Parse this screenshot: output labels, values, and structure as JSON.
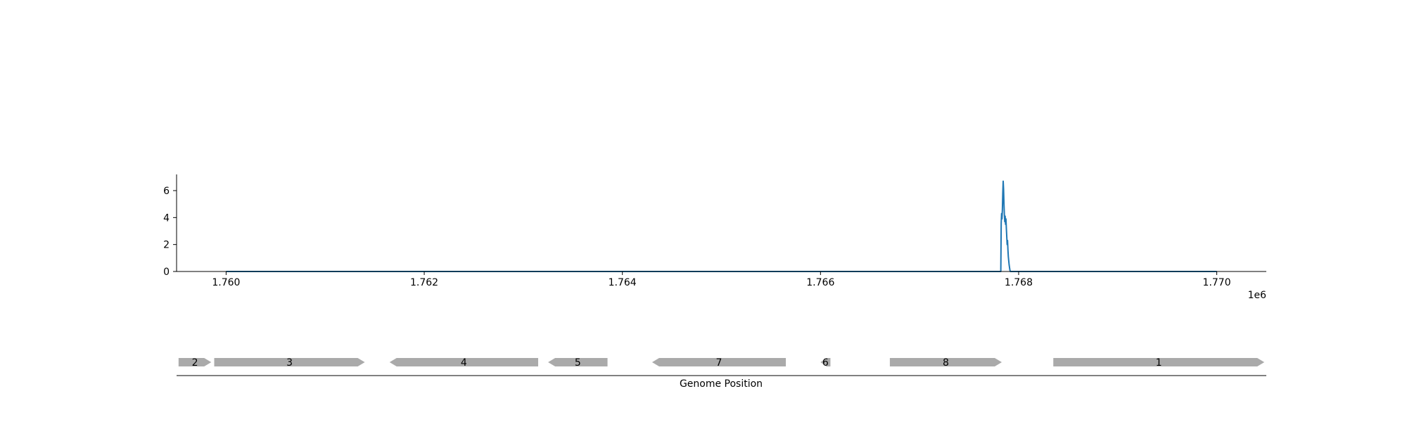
{
  "chart_data": [
    {
      "type": "line",
      "title": "",
      "xlabel": "",
      "ylabel": "",
      "offset_label": "1e6",
      "xlim": [
        1759500,
        1770500
      ],
      "ylim": [
        0,
        7.2
      ],
      "x_ticks": [
        1760000,
        1762000,
        1764000,
        1766000,
        1768000,
        1770000
      ],
      "x_tick_labels": [
        "1.760",
        "1.762",
        "1.764",
        "1.766",
        "1.768",
        "1.770"
      ],
      "y_ticks": [
        0,
        2,
        4,
        6
      ],
      "y_tick_labels": [
        "0",
        "2",
        "4",
        "6"
      ],
      "grid": false,
      "line_color": "#1f77b4",
      "series": [
        {
          "x": [
            1760000,
            1767800,
            1767820,
            1767824,
            1767828,
            1767832,
            1767836,
            1767840,
            1767844,
            1767848,
            1767852,
            1767856,
            1767860,
            1767864,
            1767868,
            1767872,
            1767876,
            1767880,
            1767884,
            1767888,
            1767892,
            1767896,
            1767900,
            1767904,
            1767908,
            1767912,
            1767916,
            1767920,
            1767960,
            1770000
          ],
          "y": [
            0,
            0,
            0,
            3.6,
            4.3,
            3.9,
            4.6,
            5.8,
            6.7,
            6.1,
            5.0,
            4.2,
            3.7,
            4.1,
            3.5,
            3.9,
            3.2,
            2.6,
            2.0,
            2.3,
            1.6,
            1.1,
            0.8,
            0.5,
            0.3,
            0.1,
            0,
            0,
            0,
            0
          ]
        }
      ]
    },
    {
      "type": "gene-track",
      "xlabel": "Genome Position",
      "xlim": [
        1759500,
        1770500
      ],
      "gene_color": "#aaaaaa",
      "genes": [
        {
          "label": "2",
          "start": 1759520,
          "end": 1759850,
          "strand": "+"
        },
        {
          "label": "3",
          "start": 1759880,
          "end": 1761400,
          "strand": "+"
        },
        {
          "label": "4",
          "start": 1761650,
          "end": 1763150,
          "strand": "-"
        },
        {
          "label": "5",
          "start": 1763250,
          "end": 1763850,
          "strand": "-"
        },
        {
          "label": "7",
          "start": 1764300,
          "end": 1765650,
          "strand": "-"
        },
        {
          "label": "6",
          "start": 1766000,
          "end": 1766100,
          "strand": "-"
        },
        {
          "label": "8",
          "start": 1766700,
          "end": 1767830,
          "strand": "+"
        },
        {
          "label": "1",
          "start": 1768350,
          "end": 1770480,
          "strand": "+"
        }
      ]
    }
  ]
}
